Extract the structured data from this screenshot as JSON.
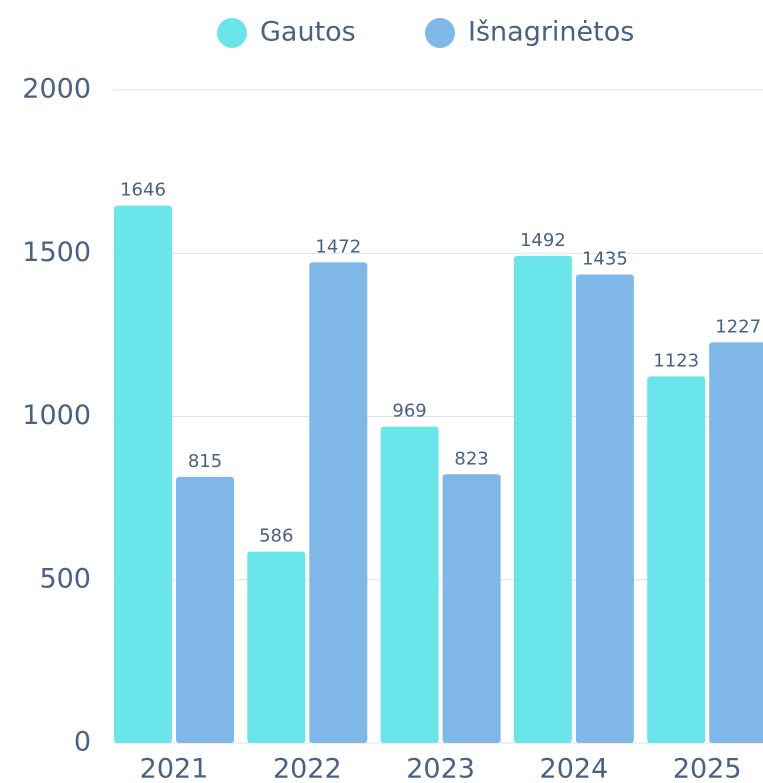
{
  "chart_data": {
    "type": "bar",
    "categories": [
      "2021",
      "2022",
      "2023",
      "2024",
      "2025"
    ],
    "series": [
      {
        "name": "Gautos",
        "color": "#6ae5e9",
        "values": [
          1646,
          586,
          969,
          1492,
          1123
        ]
      },
      {
        "name": "Išnagrinėtos",
        "color": "#7fb8e8",
        "values": [
          815,
          1472,
          823,
          1435,
          1227
        ]
      }
    ],
    "ylim": [
      0,
      2000
    ],
    "yticks": [
      0,
      500,
      1000,
      1500,
      2000
    ],
    "grid": true,
    "legend": "top"
  }
}
